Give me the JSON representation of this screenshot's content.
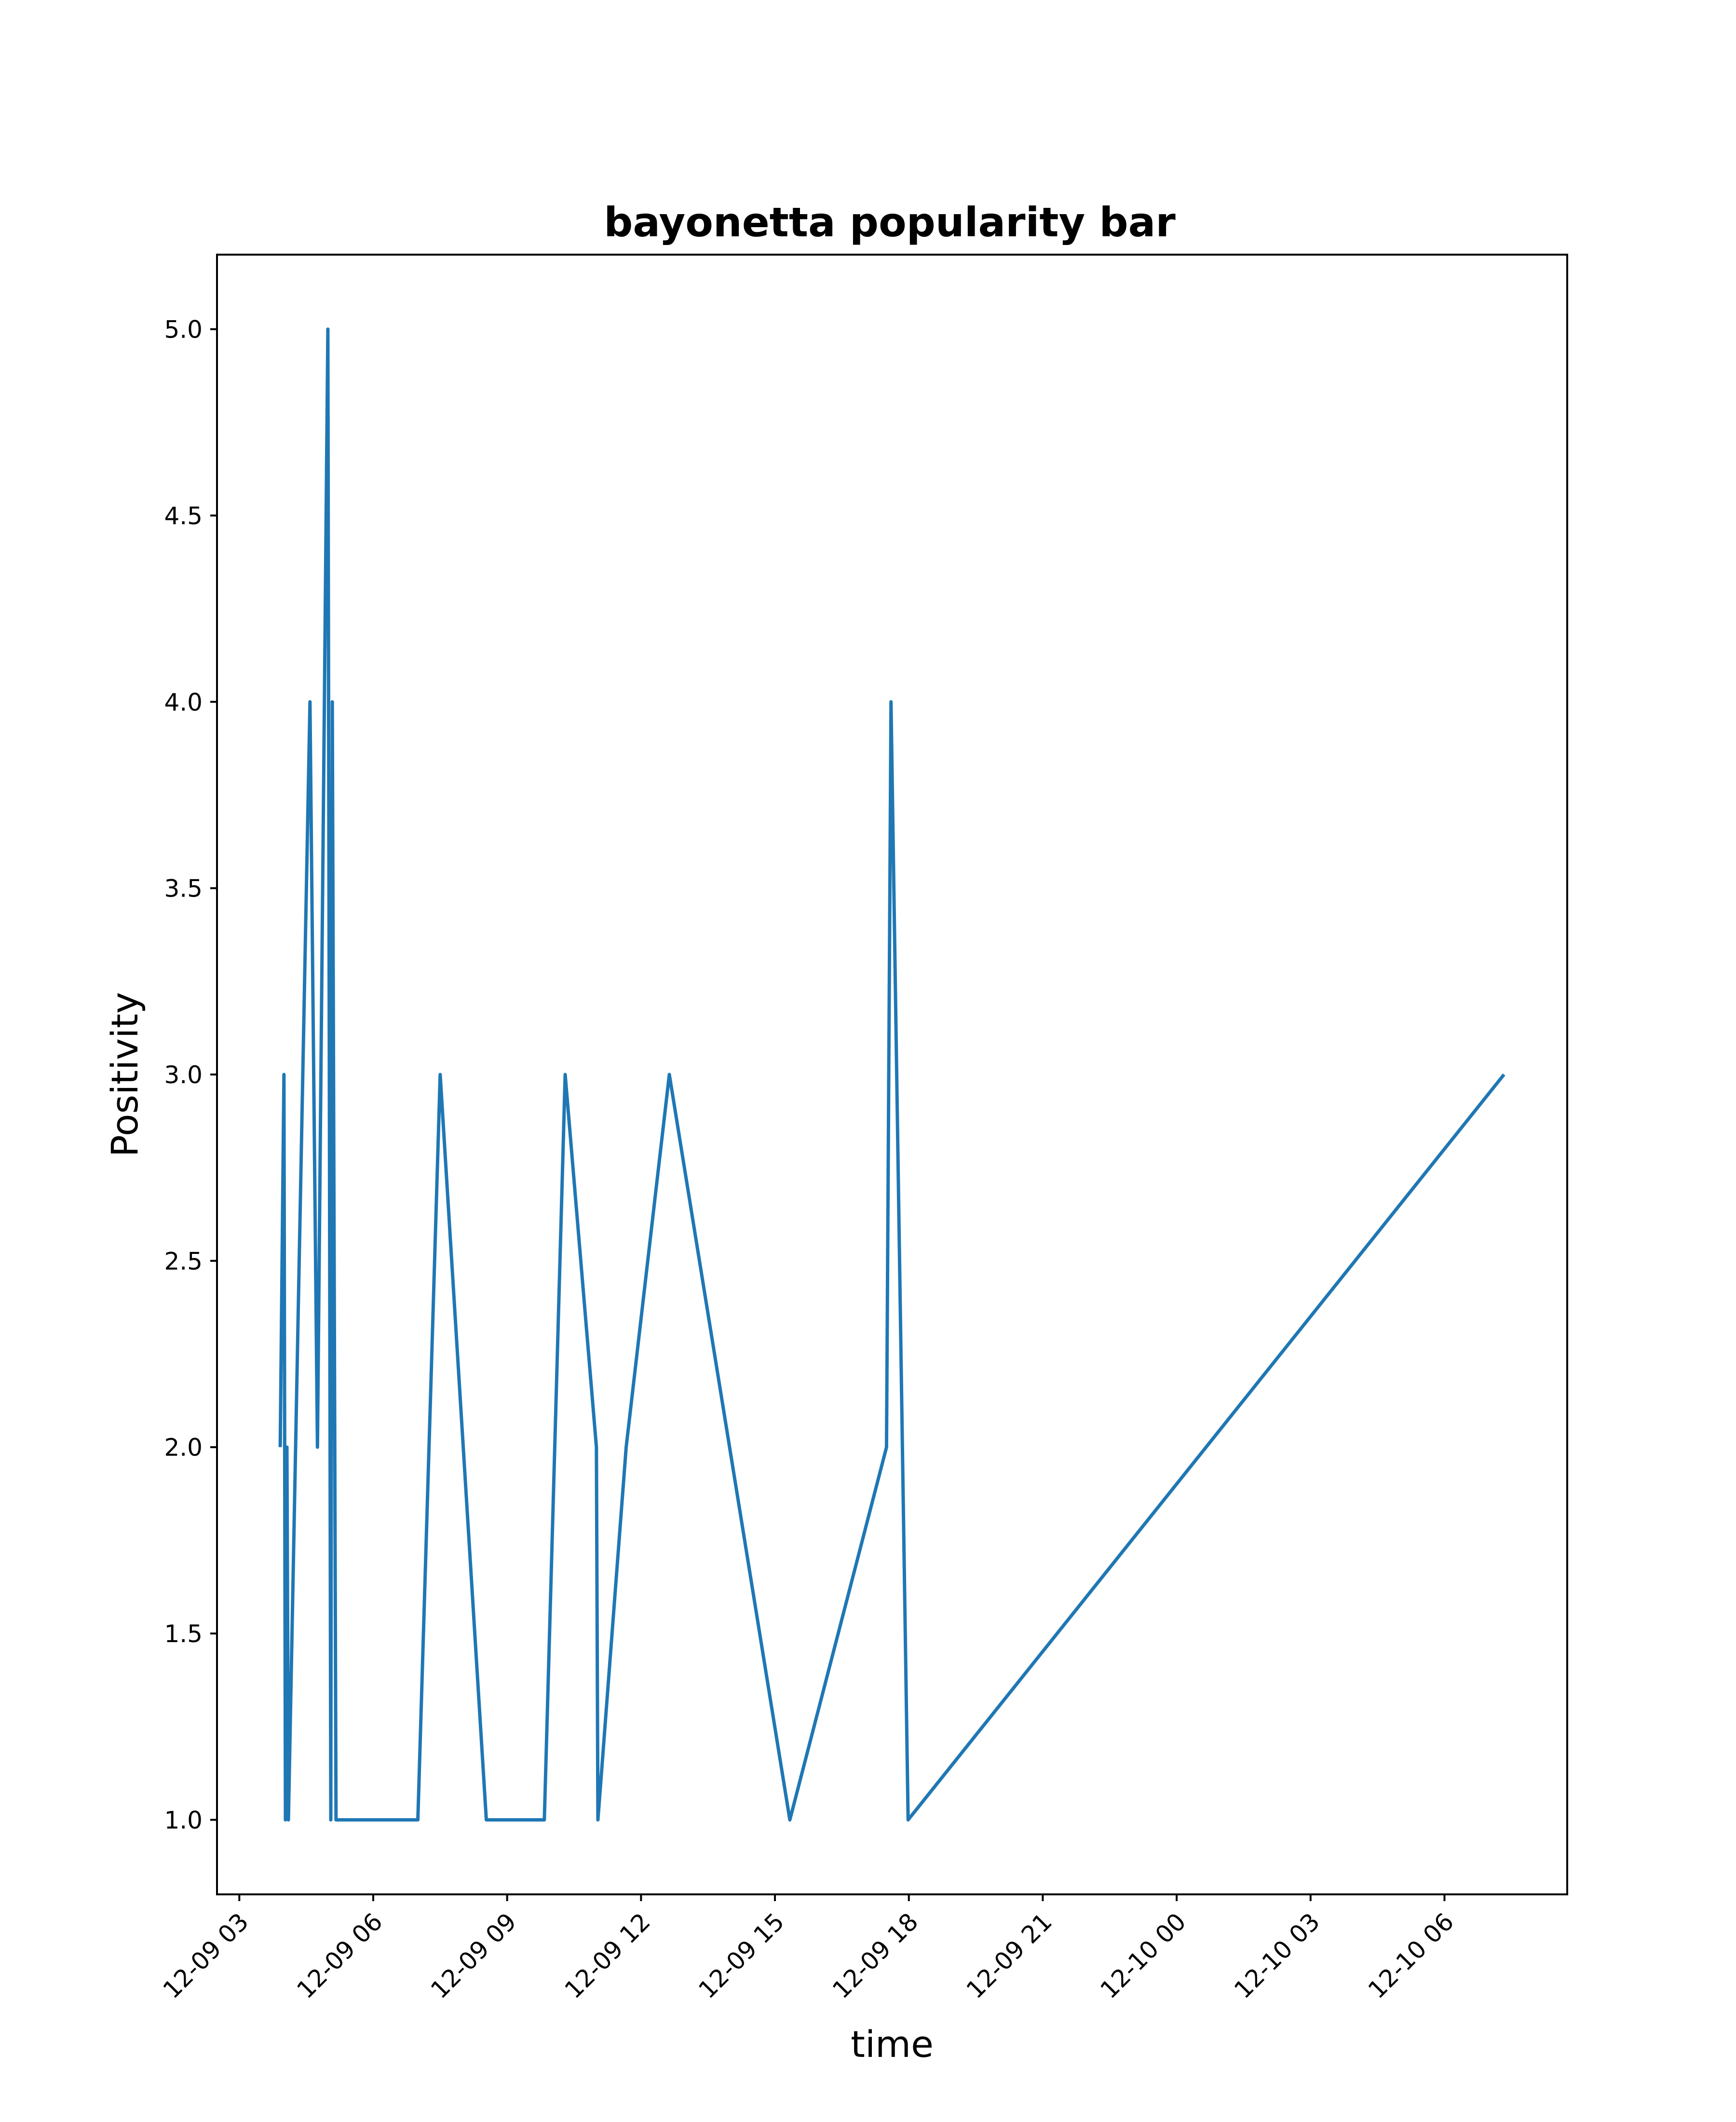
{
  "chart_data": {
    "type": "line",
    "title": "bayonetta popularity bar",
    "xlabel": "time",
    "ylabel": "Positivity",
    "x_ticks": [
      "12-09 03",
      "12-09 06",
      "12-09 09",
      "12-09 12",
      "12-09 15",
      "12-09 18",
      "12-09 21",
      "12-10 00",
      "12-10 03",
      "12-10 06"
    ],
    "y_ticks": [
      "1.0",
      "1.5",
      "2.0",
      "2.5",
      "3.0",
      "3.5",
      "4.0",
      "4.5",
      "5.0"
    ],
    "ylim": [
      0.8,
      5.2
    ],
    "xlim": [
      "12-09 02:30",
      "12-10 08:45"
    ],
    "grid": false,
    "series": [
      {
        "color": "#1f77b4",
        "points": [
          {
            "x": "12-09 03:55",
            "y": 2
          },
          {
            "x": "12-09 04:00",
            "y": 3
          },
          {
            "x": "12-09 04:02",
            "y": 1
          },
          {
            "x": "12-09 04:04",
            "y": 2
          },
          {
            "x": "12-09 04:06",
            "y": 1
          },
          {
            "x": "12-09 04:35",
            "y": 4
          },
          {
            "x": "12-09 04:45",
            "y": 2
          },
          {
            "x": "12-09 04:59",
            "y": 5
          },
          {
            "x": "12-09 05:03",
            "y": 1
          },
          {
            "x": "12-09 05:05",
            "y": 4
          },
          {
            "x": "12-09 05:10",
            "y": 1
          },
          {
            "x": "12-09 07:00",
            "y": 1
          },
          {
            "x": "12-09 07:30",
            "y": 3
          },
          {
            "x": "12-09 08:32",
            "y": 1
          },
          {
            "x": "12-09 09:50",
            "y": 1
          },
          {
            "x": "12-09 10:18",
            "y": 3
          },
          {
            "x": "12-09 11:00",
            "y": 2
          },
          {
            "x": "12-09 11:02",
            "y": 1
          },
          {
            "x": "12-09 11:40",
            "y": 2
          },
          {
            "x": "12-09 12:38",
            "y": 3
          },
          {
            "x": "12-09 15:20",
            "y": 1
          },
          {
            "x": "12-09 17:30",
            "y": 2
          },
          {
            "x": "12-09 17:36",
            "y": 4
          },
          {
            "x": "12-09 17:59",
            "y": 1
          },
          {
            "x": "12-10 07:20",
            "y": 3
          }
        ]
      }
    ]
  }
}
